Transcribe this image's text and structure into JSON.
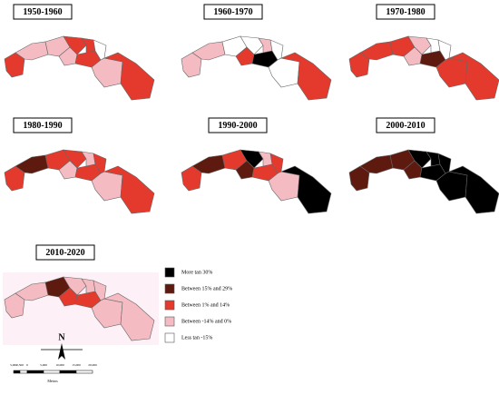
{
  "panels": [
    {
      "title": "1950-1960",
      "classes": [
        2,
        3,
        3,
        2,
        2,
        3,
        2,
        4,
        3,
        2
      ]
    },
    {
      "title": "1960-1970",
      "classes": [
        3,
        3,
        4,
        4,
        3,
        2,
        0,
        4,
        4,
        2
      ]
    },
    {
      "title": "1970-1980",
      "classes": [
        2,
        2,
        2,
        3,
        4,
        3,
        1,
        4,
        2,
        2
      ]
    },
    {
      "title": "1980-1990",
      "classes": [
        2,
        1,
        2,
        2,
        3,
        3,
        2,
        2,
        3,
        2
      ]
    },
    {
      "title": "1990-2000",
      "classes": [
        2,
        1,
        2,
        0,
        3,
        1,
        2,
        2,
        3,
        0
      ]
    },
    {
      "title": "2000-2010",
      "classes": [
        1,
        1,
        1,
        0,
        0,
        1,
        0,
        0,
        0,
        0
      ]
    },
    {
      "title": "2010-2020",
      "classes": [
        3,
        3,
        1,
        3,
        3,
        2,
        2,
        3,
        3,
        3
      ]
    }
  ],
  "legend": [
    {
      "label": "More tan 30%",
      "color": "#000000"
    },
    {
      "label": "Between 15% and 29%",
      "color": "#5e1a0f"
    },
    {
      "label": "Between 1% and 14%",
      "color": "#e43a2e"
    },
    {
      "label": "Between -14% and 0%",
      "color": "#f4bcc2"
    },
    {
      "label": "Less tan -15%",
      "color": "#ffffff"
    }
  ],
  "north": "N",
  "scale": {
    "labels": [
      "5,000",
      "2,500",
      "0",
      "5,000",
      "10,000",
      "15,000",
      "20,000"
    ],
    "unit": "Metros"
  }
}
